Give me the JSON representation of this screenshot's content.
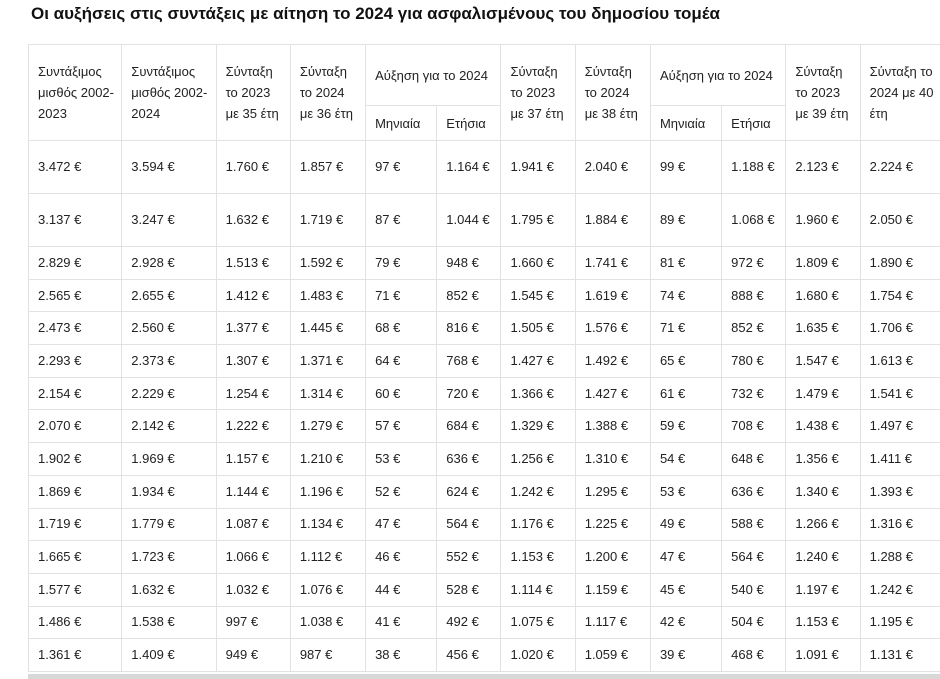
{
  "title": "Οι αυξήσεις στις συντάξεις με αίτηση το 2024 για ασφαλισμένους του δημοσίου τομέα",
  "headers": {
    "c1": "Συντάξιμος μισθός 2002-2023",
    "c2": "Συντάξιμος μισθός 2002-2024",
    "c3": "Σύνταξη το 2023 με 35 έτη",
    "c4": "Σύνταξη το 2024 με 36 έτη",
    "inc1": "Αύξηση για το 2024",
    "c7": "Σύνταξη το 2023 με 37 έτη",
    "c8": "Σύνταξη το 2024 με 38 έτη",
    "inc2": "Αύξηση για το 2024",
    "c11": "Σύνταξη το 2023 με 39 έτη",
    "c12": "Σύνταξη το 2024 με 40 έτη",
    "monthly1": "Μηνιαία",
    "yearly1": "Ετήσια",
    "monthly2": "Μηνιαία",
    "yearly2": "Ετήσια"
  },
  "rows": [
    [
      "3.472 €",
      "3.594 €",
      "1.760 €",
      "1.857 €",
      "97 €",
      "1.164 €",
      "1.941 €",
      "2.040 €",
      "99 €",
      "1.188 €",
      "2.123 €",
      "2.224 €"
    ],
    [
      "3.137 €",
      "3.247 €",
      "1.632 €",
      "1.719 €",
      "87 €",
      "1.044 €",
      "1.795 €",
      "1.884 €",
      "89 €",
      "1.068 €",
      "1.960 €",
      "2.050 €"
    ],
    [
      "2.829 €",
      "2.928 €",
      "1.513 €",
      "1.592 €",
      "79 €",
      "948 €",
      "1.660 €",
      "1.741 €",
      "81 €",
      "972 €",
      "1.809 €",
      "1.890 €"
    ],
    [
      "2.565 €",
      "2.655 €",
      "1.412 €",
      "1.483 €",
      "71 €",
      "852 €",
      "1.545 €",
      "1.619 €",
      "74 €",
      "888 €",
      "1.680 €",
      "1.754 €"
    ],
    [
      "2.473 €",
      "2.560 €",
      "1.377 €",
      "1.445 €",
      "68 €",
      "816 €",
      "1.505 €",
      "1.576 €",
      "71 €",
      "852 €",
      "1.635 €",
      "1.706 €"
    ],
    [
      "2.293 €",
      "2.373 €",
      "1.307 €",
      "1.371 €",
      "64 €",
      "768 €",
      "1.427 €",
      "1.492 €",
      "65 €",
      "780 €",
      "1.547 €",
      "1.613 €"
    ],
    [
      "2.154 €",
      "2.229 €",
      "1.254 €",
      "1.314 €",
      "60 €",
      "720 €",
      "1.366 €",
      "1.427 €",
      "61 €",
      "732 €",
      "1.479 €",
      "1.541 €"
    ],
    [
      "2.070 €",
      "2.142 €",
      "1.222 €",
      "1.279 €",
      "57 €",
      "684 €",
      "1.329 €",
      "1.388 €",
      "59 €",
      "708 €",
      "1.438 €",
      "1.497 €"
    ],
    [
      "1.902 €",
      "1.969 €",
      "1.157 €",
      "1.210 €",
      "53 €",
      "636 €",
      "1.256 €",
      "1.310 €",
      "54 €",
      "648 €",
      "1.356 €",
      "1.411 €"
    ],
    [
      "1.869 €",
      "1.934 €",
      "1.144 €",
      "1.196 €",
      "52 €",
      "624 €",
      "1.242 €",
      "1.295 €",
      "53 €",
      "636 €",
      "1.340 €",
      "1.393 €"
    ],
    [
      "1.719 €",
      "1.779 €",
      "1.087 €",
      "1.134 €",
      "47 €",
      "564 €",
      "1.176 €",
      "1.225 €",
      "49 €",
      "588 €",
      "1.266 €",
      "1.316 €"
    ],
    [
      "1.665 €",
      "1.723 €",
      "1.066 €",
      "1.112 €",
      "46 €",
      "552 €",
      "1.153 €",
      "1.200 €",
      "47 €",
      "564 €",
      "1.240 €",
      "1.288 €"
    ],
    [
      "1.577 €",
      "1.632 €",
      "1.032 €",
      "1.076 €",
      "44 €",
      "528 €",
      "1.114 €",
      "1.159 €",
      "45 €",
      "540 €",
      "1.197 €",
      "1.242 €"
    ],
    [
      "1.486 €",
      "1.538 €",
      "997 €",
      "1.038 €",
      "41 €",
      "492 €",
      "1.075 €",
      "1.117 €",
      "42 €",
      "504 €",
      "1.153 €",
      "1.195 €"
    ],
    [
      "1.361 €",
      "1.409 €",
      "949 €",
      "987 €",
      "38 €",
      "456 €",
      "1.020 €",
      "1.059 €",
      "39 €",
      "468 €",
      "1.091 €",
      "1.131 €"
    ]
  ]
}
